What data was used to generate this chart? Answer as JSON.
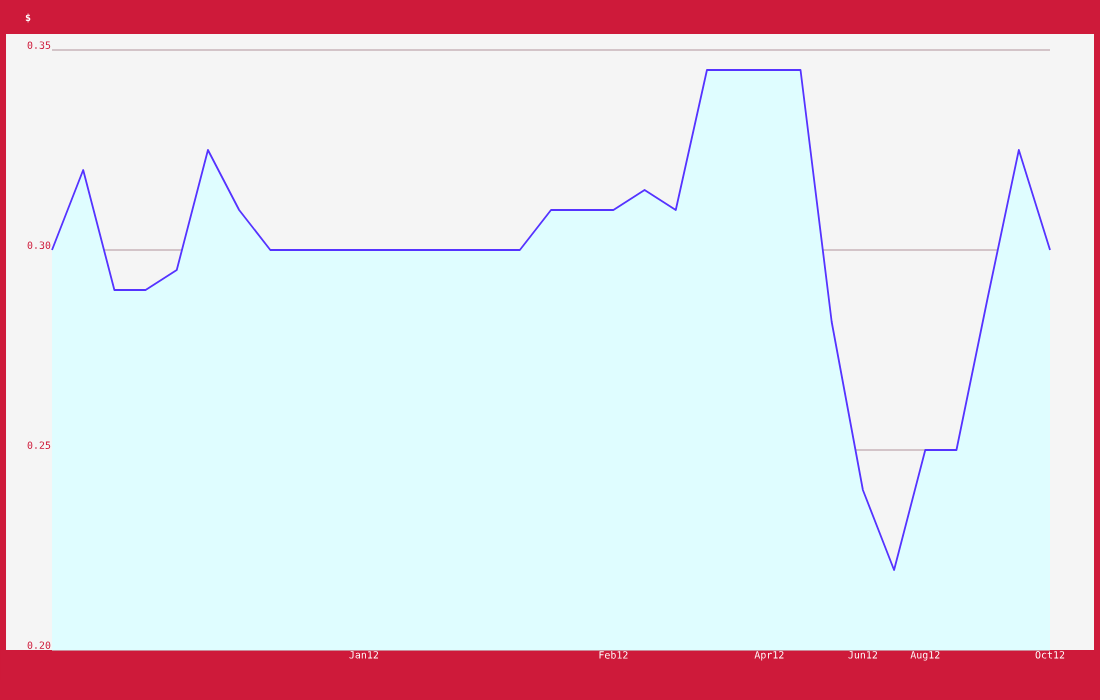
{
  "chart_data": {
    "type": "area",
    "ylabel": "$",
    "categories": [
      null,
      null,
      null,
      null,
      null,
      null,
      null,
      null,
      null,
      null,
      "Jan12",
      null,
      null,
      null,
      null,
      null,
      null,
      null,
      "Feb12",
      null,
      null,
      null,
      null,
      "Apr12",
      null,
      null,
      "Jun12",
      null,
      "Aug12",
      null,
      null,
      null,
      "Oct12"
    ],
    "series": [
      {
        "color": "#5533ff",
        "values": [
          0.3,
          0.32,
          0.29,
          0.29,
          0.295,
          0.325,
          0.31,
          0.3,
          0.3,
          0.3,
          0.3,
          0.3,
          0.3,
          0.3,
          0.3,
          0.3,
          0.31,
          0.31,
          0.31,
          0.315,
          0.31,
          0.345,
          0.345,
          0.345,
          0.345,
          0.282,
          0.24,
          0.22,
          0.25,
          0.25,
          0.288,
          0.325,
          0.3
        ]
      }
    ],
    "ylim": [
      0.2,
      0.35
    ],
    "yticks": [
      {
        "value": 0.2,
        "label": "0.20"
      },
      {
        "value": 0.25,
        "label": "0.25"
      },
      {
        "value": 0.3,
        "label": "0.30"
      },
      {
        "value": 0.35,
        "label": "0.35"
      }
    ],
    "grid": "y"
  }
}
